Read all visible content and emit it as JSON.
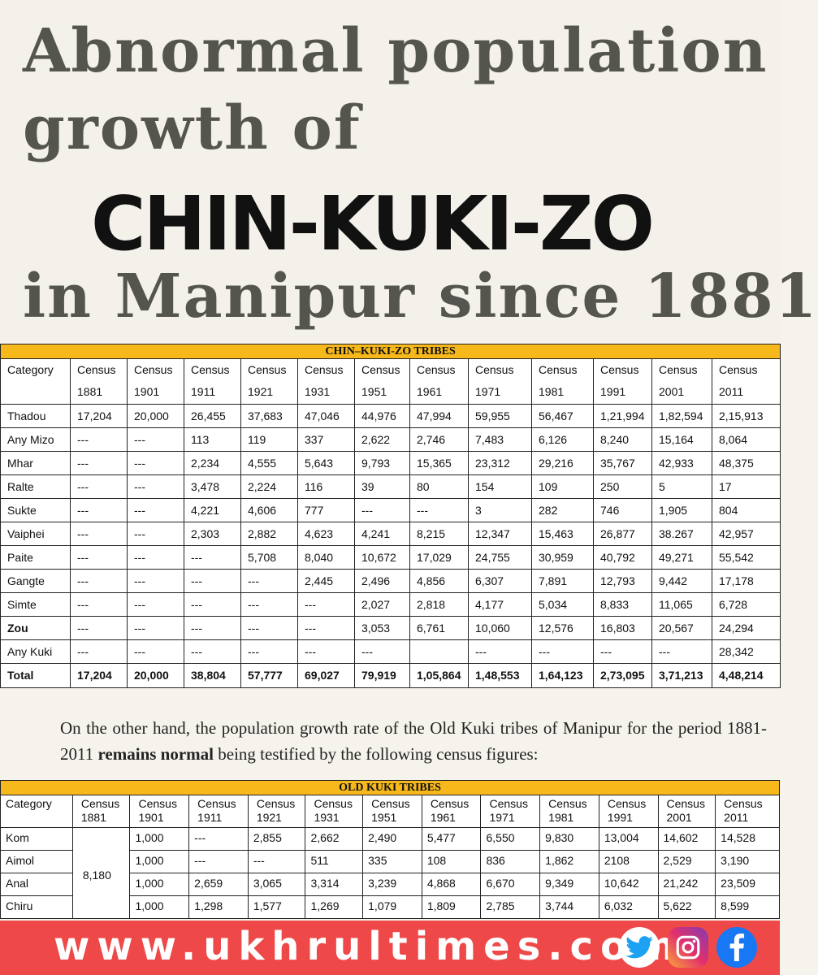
{
  "headline": {
    "line1": "Abnormal population",
    "line2": "growth of",
    "line3": "CHIN-KUKI-ZO",
    "line4": "in Manipur since 1881"
  },
  "table1": {
    "title": "CHIN–KUKI-ZO TRIBES",
    "category_label": "Category",
    "years": [
      "1881",
      "1901",
      "1911",
      "1921",
      "1931",
      "1951",
      "1961",
      "1971",
      "1981",
      "1991",
      "2001",
      "2011"
    ],
    "census_label": "Census",
    "rows": [
      {
        "name": "Thadou",
        "values": [
          "17,204",
          "20,000",
          "26,455",
          "37,683",
          "47,046",
          "44,976",
          "47,994",
          "59,955",
          "56,467",
          "1,21,994",
          "1,82,594",
          "2,15,913"
        ]
      },
      {
        "name": "Any Mizo",
        "values": [
          "---",
          "---",
          "113",
          "119",
          "337",
          "2,622",
          "2,746",
          "7,483",
          "6,126",
          "8,240",
          "15,164",
          "8,064"
        ]
      },
      {
        "name": "Mhar",
        "values": [
          "---",
          "---",
          "2,234",
          "4,555",
          "5,643",
          "9,793",
          "15,365",
          "23,312",
          "29,216",
          "35,767",
          "42,933",
          "48,375"
        ]
      },
      {
        "name": "Ralte",
        "values": [
          "---",
          "---",
          "3,478",
          "2,224",
          "116",
          "39",
          "80",
          "154",
          "109",
          "250",
          "5",
          "17"
        ]
      },
      {
        "name": "Sukte",
        "values": [
          "---",
          "---",
          "4,221",
          "4,606",
          "777",
          "---",
          "---",
          "3",
          "282",
          "746",
          "1,905",
          "804"
        ]
      },
      {
        "name": "Vaiphei",
        "values": [
          "---",
          "---",
          "2,303",
          "2,882",
          "4,623",
          "4,241",
          "8,215",
          "12,347",
          "15,463",
          "26,877",
          "38.267",
          "42,957"
        ]
      },
      {
        "name": "Paite",
        "values": [
          "---",
          "---",
          "---",
          "5,708",
          "8,040",
          "10,672",
          "17,029",
          "24,755",
          "30,959",
          "40,792",
          "49,271",
          "55,542"
        ]
      },
      {
        "name": "Gangte",
        "values": [
          "---",
          "---",
          "---",
          "---",
          "2,445",
          "2,496",
          "4,856",
          "6,307",
          "7,891",
          "12,793",
          "9,442",
          "17,178"
        ]
      },
      {
        "name": "Simte",
        "values": [
          "---",
          "---",
          "---",
          "---",
          "---",
          "2,027",
          "2,818",
          "4,177",
          "5,034",
          "8,833",
          "11,065",
          "6,728"
        ]
      },
      {
        "name": "Zou",
        "values": [
          "---",
          "---",
          "---",
          "---",
          "---",
          "3,053",
          "6,761",
          "10,060",
          "12,576",
          "16,803",
          "20,567",
          "24,294"
        ]
      },
      {
        "name": "Any Kuki",
        "values": [
          "---",
          "---",
          "---",
          "---",
          "---",
          "---",
          "",
          "---",
          "---",
          "---",
          "---",
          "28,342"
        ]
      }
    ],
    "total": {
      "name": "Total",
      "values": [
        "17,204",
        "20,000",
        "38,804",
        "57,777",
        "69,027",
        "79,919",
        "1,05,864",
        "1,48,553",
        "1,64,123",
        "2,73,095",
        "3,71,213",
        "4,48,214"
      ]
    }
  },
  "paragraph": {
    "part1": "On the other hand, the population growth rate of the Old Kuki tribes of Manipur for the period 1881-2011 ",
    "bold": "remains normal",
    "part2": " being testified by the following census figures:"
  },
  "table2": {
    "title": "OLD KUKI TRIBES",
    "category_label": "Category",
    "census_label": "Census",
    "years": [
      "1881",
      "1901",
      "1911",
      "1921",
      "1931",
      "1951",
      "1961",
      "1971",
      "1981",
      "1991",
      "2001",
      "2011"
    ],
    "merged_1881": "8,180",
    "rows": [
      {
        "name": "Kom",
        "values": [
          "1,000",
          "---",
          "2,855",
          "2,662",
          "2,490",
          "5,477",
          "6,550",
          "9,830",
          "13,004",
          "14,602",
          "14,528"
        ]
      },
      {
        "name": "Aimol",
        "values": [
          "1,000",
          "---",
          "---",
          "511",
          "335",
          "108",
          "836",
          "1,862",
          "2108",
          "2,529",
          "3,190"
        ]
      },
      {
        "name": "Anal",
        "values": [
          "1,000",
          "2,659",
          "3,065",
          "3,314",
          "3,239",
          "4,868",
          "6,670",
          "9,349",
          "10,642",
          "21,242",
          "23,509"
        ]
      },
      {
        "name": "Chiru",
        "values": [
          "1,000",
          "1,298",
          "1,577",
          "1,269",
          "1,079",
          "1,809",
          "2,785",
          "3,744",
          "6,032",
          "5,622",
          "8,599"
        ]
      }
    ]
  },
  "footer": {
    "url": "www.ukhrultimes.com",
    "icons": [
      "twitter-icon",
      "instagram-icon",
      "facebook-icon"
    ],
    "colors": {
      "bar": "#ee4848",
      "twitter": "#1da1f2",
      "facebook": "#1877f2"
    }
  }
}
